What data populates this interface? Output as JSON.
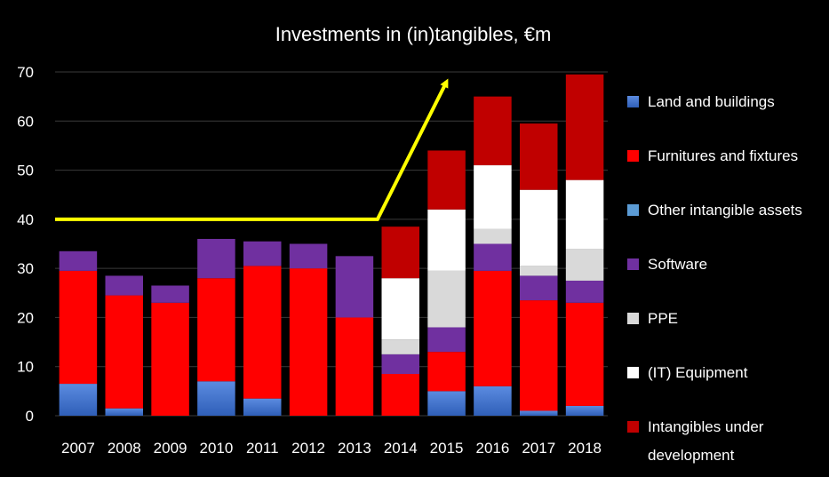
{
  "chart_data": {
    "type": "bar",
    "stacked": true,
    "title": "Investments in (in)tangibles, €m",
    "xlabel": "",
    "ylabel": "",
    "ylim": [
      0,
      70
    ],
    "y_ticks": [
      0,
      10,
      20,
      30,
      40,
      50,
      60,
      70
    ],
    "grid": true,
    "legend_position": "right",
    "categories": [
      "2007",
      "2008",
      "2009",
      "2010",
      "2011",
      "2012",
      "2013",
      "2014",
      "2015",
      "2016",
      "2017",
      "2018"
    ],
    "series": [
      {
        "name": "Land and buildings",
        "color": "#4a7bd0",
        "values": [
          6.5,
          1.5,
          0,
          7,
          3.5,
          0,
          0,
          0,
          5,
          6,
          1,
          2
        ]
      },
      {
        "name": "Furnitures and fixtures",
        "color": "#ff0000",
        "values": [
          23,
          23,
          23,
          21,
          27,
          30,
          20,
          8.5,
          8,
          23.5,
          22.5,
          21
        ]
      },
      {
        "name": "Other intangible assets",
        "color": "#5b9bd5",
        "values": [
          0,
          0,
          0,
          0,
          0,
          0,
          0,
          0,
          0,
          0,
          0,
          0
        ]
      },
      {
        "name": "Software",
        "color": "#7030a0",
        "values": [
          4,
          4,
          3.5,
          8,
          5,
          5,
          12.5,
          4,
          5,
          5.5,
          5,
          4.5
        ]
      },
      {
        "name": "PPE",
        "color": "#d9d9d9",
        "values": [
          0,
          0,
          0,
          0,
          0,
          0,
          0,
          3,
          11.5,
          3,
          2,
          6.5
        ]
      },
      {
        "name": "(IT) Equipment",
        "color": "#ffffff",
        "values": [
          0,
          0,
          0,
          0,
          0,
          0,
          0,
          12.5,
          12.5,
          13,
          15.5,
          14
        ]
      },
      {
        "name": "Intangibles under development",
        "color": "#c00000",
        "values": [
          0,
          0,
          0,
          0,
          0,
          0,
          0,
          10.5,
          12,
          14,
          13.5,
          21.5
        ]
      }
    ],
    "legend_lines": [
      [
        "Land and buildings"
      ],
      [
        "Furnitures and fixtures"
      ],
      [
        "Other intangible assets"
      ],
      [
        "Software"
      ],
      [
        "PPE"
      ],
      [
        "(IT) Equipment"
      ],
      [
        "Intangibles under",
        "development"
      ]
    ],
    "annotation": {
      "type": "trend-arrow",
      "color": "#ffff00",
      "points": [
        [
          -0.5,
          40
        ],
        [
          6.5,
          40
        ],
        [
          8.0,
          68
        ]
      ]
    }
  }
}
